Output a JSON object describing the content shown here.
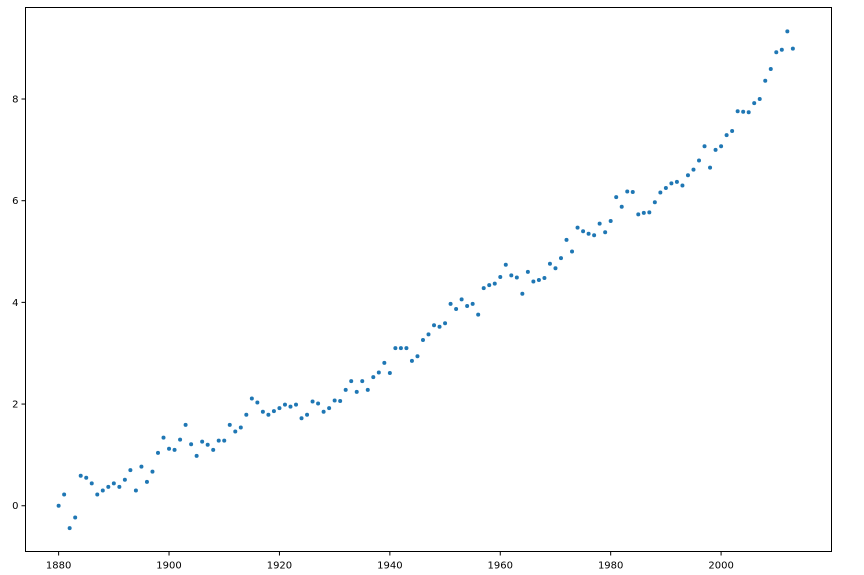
{
  "chart_data": {
    "type": "scatter",
    "title": "",
    "xlabel": "",
    "ylabel": "",
    "xlim": [
      1874,
      2020
    ],
    "ylim": [
      -0.9,
      9.8
    ],
    "xticks": [
      1880,
      1900,
      1920,
      1940,
      1960,
      1980,
      2000
    ],
    "yticks": [
      0,
      2,
      4,
      6,
      8
    ],
    "xtick_labels": [
      "1880",
      "1900",
      "1920",
      "1940",
      "1960",
      "1980",
      "2000"
    ],
    "ytick_labels": [
      "0",
      "2",
      "4",
      "6",
      "8"
    ],
    "grid": false,
    "marker_color": "#1f77b4",
    "series": [
      {
        "x": [
          1880,
          1881,
          1882,
          1883,
          1884,
          1885,
          1886,
          1887,
          1888,
          1889,
          1890,
          1891,
          1892,
          1893,
          1894,
          1895,
          1896,
          1897,
          1898,
          1899,
          1900,
          1901,
          1902,
          1903,
          1904,
          1905,
          1906,
          1907,
          1908,
          1909,
          1910,
          1911,
          1912,
          1913,
          1914,
          1915,
          1916,
          1917,
          1918,
          1919,
          1920,
          1921,
          1922,
          1923,
          1924,
          1925,
          1926,
          1927,
          1928,
          1929,
          1930,
          1931,
          1932,
          1933,
          1934,
          1935,
          1936,
          1937,
          1938,
          1939,
          1940,
          1941,
          1942,
          1943,
          1944,
          1945,
          1946,
          1947,
          1948,
          1949,
          1950,
          1951,
          1952,
          1953,
          1954,
          1955,
          1956,
          1957,
          1958,
          1959,
          1960,
          1961,
          1962,
          1963,
          1964,
          1965,
          1966,
          1967,
          1968,
          1969,
          1970,
          1971,
          1972,
          1973,
          1974,
          1975,
          1976,
          1977,
          1978,
          1979,
          1980,
          1981,
          1982,
          1983,
          1984,
          1985,
          1986,
          1987,
          1988,
          1989,
          1990,
          1991,
          1992,
          1993,
          1994,
          1995,
          1996,
          1997,
          1998,
          1999,
          2000,
          2001,
          2002,
          2003,
          2004,
          2005,
          2006,
          2007,
          2008,
          2009,
          2010,
          2011,
          2012,
          2013
        ],
        "y": [
          0.0,
          0.22,
          -0.44,
          -0.23,
          0.59,
          0.55,
          0.44,
          0.22,
          0.3,
          0.37,
          0.44,
          0.37,
          0.51,
          0.7,
          0.3,
          0.77,
          0.47,
          0.67,
          1.04,
          1.34,
          1.12,
          1.1,
          1.3,
          1.59,
          1.21,
          0.98,
          1.26,
          1.2,
          1.1,
          1.28,
          1.28,
          1.59,
          1.46,
          1.54,
          1.79,
          2.11,
          2.03,
          1.85,
          1.79,
          1.86,
          1.92,
          1.99,
          1.95,
          1.99,
          1.72,
          1.79,
          2.05,
          2.01,
          1.85,
          1.92,
          2.07,
          2.06,
          2.28,
          2.45,
          2.24,
          2.45,
          2.28,
          2.53,
          2.62,
          2.81,
          2.61,
          3.1,
          3.1,
          3.1,
          2.85,
          2.94,
          3.26,
          3.37,
          3.55,
          3.52,
          3.59,
          3.97,
          3.87,
          4.06,
          3.93,
          3.97,
          3.76,
          4.28,
          4.34,
          4.37,
          4.5,
          4.74,
          4.53,
          4.49,
          4.17,
          4.6,
          4.41,
          4.44,
          4.48,
          4.76,
          4.67,
          4.87,
          5.23,
          5.0,
          5.47,
          5.4,
          5.35,
          5.32,
          5.55,
          5.38,
          5.6,
          6.07,
          5.88,
          6.18,
          6.17,
          5.73,
          5.76,
          5.77,
          5.97,
          6.16,
          6.25,
          6.34,
          6.37,
          6.3,
          6.5,
          6.61,
          6.79,
          7.07,
          6.65,
          7.0,
          7.07,
          7.29,
          7.37,
          7.76,
          7.75,
          7.74,
          7.92,
          8.0,
          8.36,
          8.59,
          8.92,
          8.97,
          9.33,
          8.99
        ]
      }
    ]
  }
}
